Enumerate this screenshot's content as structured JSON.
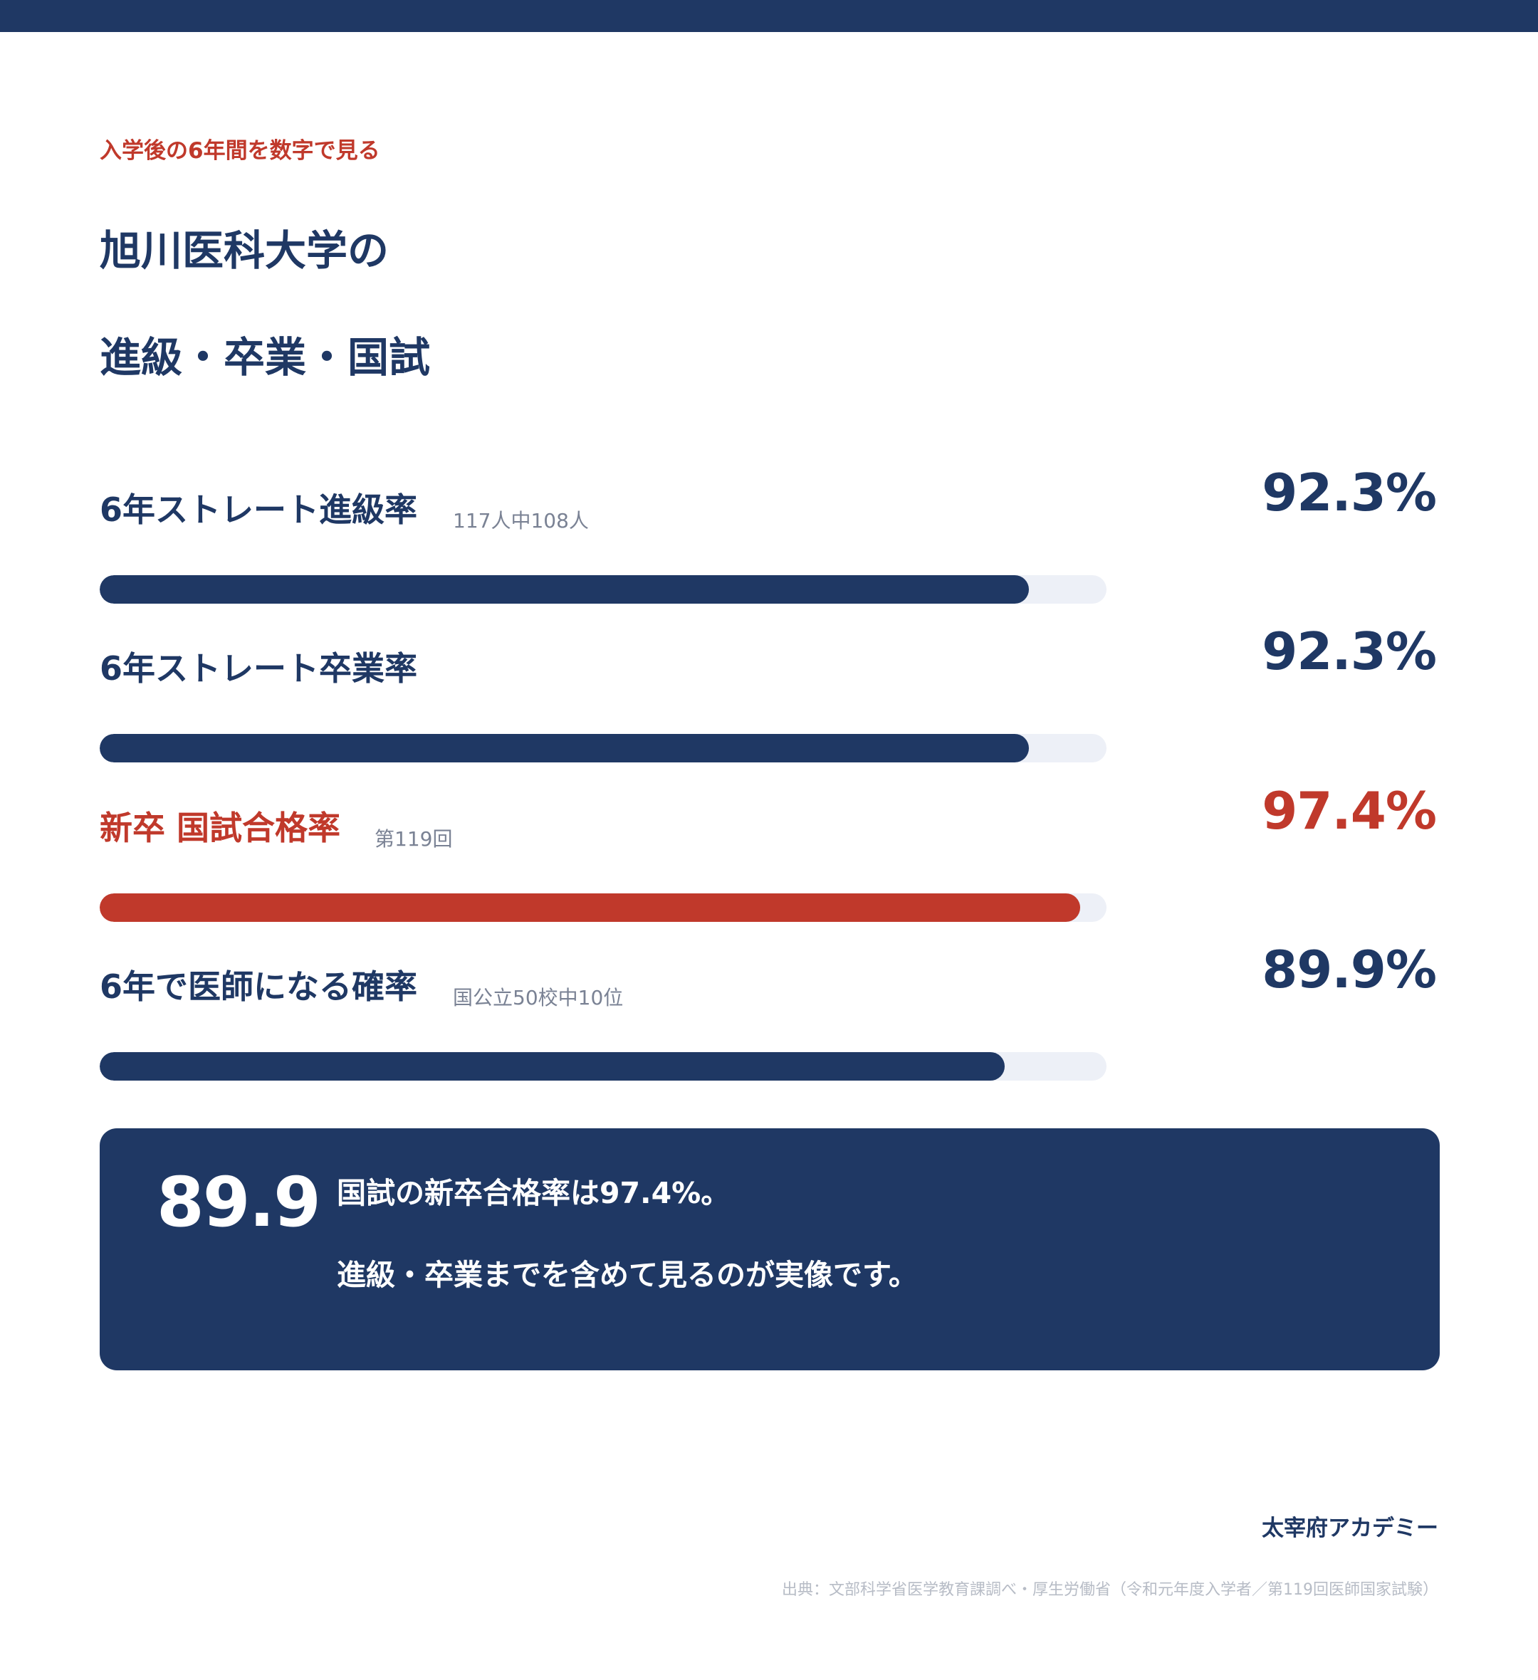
{
  "header": {
    "eyebrow": "入学後の6年間を数字で見る",
    "title_line1": "旭川医科大学の",
    "title_line2": "進級・卒業・国試"
  },
  "chart_data": {
    "type": "bar",
    "orientation": "horizontal",
    "xlim": [
      0,
      100
    ],
    "unit": "%",
    "categories": [
      "6年ストレート進級率",
      "6年ストレート卒業率",
      "新卒 国試合格率",
      "6年で医師になる確率"
    ],
    "values": [
      92.3,
      92.3,
      97.4,
      89.9
    ],
    "value_labels": [
      "92.3%",
      "92.3%",
      "97.4%",
      "89.9%"
    ],
    "notes": [
      "117人中108人",
      "",
      "第119回",
      "国公立50校中10位"
    ],
    "highlight_index": 2,
    "colors": {
      "default": "#1f3864",
      "highlight": "#c0392b",
      "track": "#edf0f7"
    }
  },
  "summary": {
    "number": "89.9",
    "line1": "国試の新卒合格率は97.4%。",
    "line2": "進級・卒業までを含めて見るのが実像です。"
  },
  "footer": {
    "brand": "太宰府アカデミー",
    "source": "出典：文部科学省医学教育課調べ・厚生労働省（令和元年度入学者／第119回医師国家試験）"
  }
}
